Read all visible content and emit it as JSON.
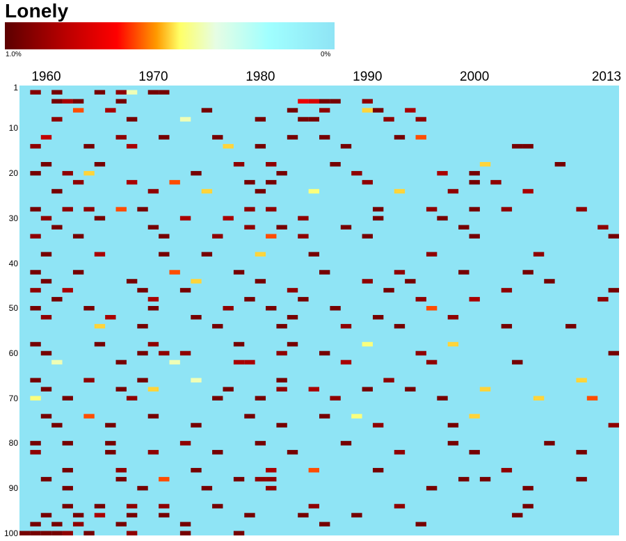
{
  "header": {
    "title": "Lonely"
  },
  "legend": {
    "max_label": "1.0%",
    "min_label": "0%",
    "stops": [
      "#5c0000",
      "#b80000",
      "#ff0000",
      "#ff9a00",
      "#ffff66",
      "#e6fde4",
      "#a0ffff",
      "#8fe4f5"
    ]
  },
  "axes": {
    "x_labels": [
      {
        "text": "1960",
        "year": 1960
      },
      {
        "text": "1970",
        "year": 1970
      },
      {
        "text": "1980",
        "year": 1980
      },
      {
        "text": "1990",
        "year": 1990
      },
      {
        "text": "2000",
        "year": 2000
      },
      {
        "text": "2013",
        "year": 2013
      }
    ],
    "y_labels": [
      {
        "text": "1",
        "rank": 1
      },
      {
        "text": "10",
        "rank": 10
      },
      {
        "text": "20",
        "rank": 20
      },
      {
        "text": "30",
        "rank": 30
      },
      {
        "text": "40",
        "rank": 40
      },
      {
        "text": "50",
        "rank": 50
      },
      {
        "text": "60",
        "rank": 60
      },
      {
        "text": "70",
        "rank": 70
      },
      {
        "text": "80",
        "rank": 80
      },
      {
        "text": "90",
        "rank": 90
      },
      {
        "text": "100",
        "rank": 100
      }
    ]
  },
  "chart_data": {
    "type": "heatmap",
    "title": "Lonely",
    "x_range": [
      1958,
      2013
    ],
    "y_range": [
      1,
      100
    ],
    "value_range": [
      0,
      1.0
    ],
    "value_unit": "%",
    "background_value": 0,
    "colors": {
      "background": "#8fe4f5"
    },
    "cells": [
      [
        1959,
        2,
        0.92
      ],
      [
        1961,
        2,
        0.95
      ],
      [
        1965,
        2,
        0.95
      ],
      [
        1967,
        2,
        0.9
      ],
      [
        1968,
        2,
        0.4
      ],
      [
        1970,
        2,
        0.95
      ],
      [
        1971,
        2,
        0.95
      ],
      [
        1961,
        4,
        0.95
      ],
      [
        1962,
        4,
        0.85
      ],
      [
        1963,
        4,
        0.95
      ],
      [
        1967,
        4,
        0.95
      ],
      [
        1984,
        4,
        0.7
      ],
      [
        1985,
        4,
        0.75
      ],
      [
        1986,
        4,
        0.95
      ],
      [
        1987,
        4,
        0.95
      ],
      [
        1990,
        4,
        0.9
      ],
      [
        1963,
        6,
        0.6
      ],
      [
        1966,
        6,
        0.85
      ],
      [
        1975,
        6,
        0.95
      ],
      [
        1983,
        6,
        0.95
      ],
      [
        1986,
        6,
        0.9
      ],
      [
        1990,
        6,
        0.5
      ],
      [
        1991,
        6,
        0.95
      ],
      [
        1994,
        6,
        0.85
      ],
      [
        1961,
        8,
        0.9
      ],
      [
        1968,
        8,
        0.95
      ],
      [
        1973,
        8,
        0.4
      ],
      [
        1980,
        8,
        0.95
      ],
      [
        1984,
        8,
        0.95
      ],
      [
        1985,
        8,
        0.95
      ],
      [
        1992,
        8,
        0.9
      ],
      [
        1995,
        8,
        0.9
      ],
      [
        1960,
        12,
        0.8
      ],
      [
        1967,
        12,
        0.9
      ],
      [
        1971,
        12,
        0.95
      ],
      [
        1976,
        12,
        0.95
      ],
      [
        1983,
        12,
        0.95
      ],
      [
        1986,
        12,
        0.95
      ],
      [
        1993,
        12,
        0.95
      ],
      [
        1995,
        12,
        0.6
      ],
      [
        1959,
        14,
        0.9
      ],
      [
        1964,
        14,
        0.95
      ],
      [
        1968,
        14,
        0.85
      ],
      [
        1977,
        14,
        0.5
      ],
      [
        1980,
        14,
        0.95
      ],
      [
        1988,
        14,
        0.95
      ],
      [
        2004,
        14,
        0.95
      ],
      [
        2005,
        14,
        0.95
      ],
      [
        1960,
        18,
        0.95
      ],
      [
        1965,
        18,
        0.95
      ],
      [
        1978,
        18,
        0.9
      ],
      [
        1981,
        18,
        0.9
      ],
      [
        1987,
        18,
        0.95
      ],
      [
        2001,
        18,
        0.5
      ],
      [
        2008,
        18,
        0.95
      ],
      [
        1959,
        20,
        0.95
      ],
      [
        1962,
        20,
        0.9
      ],
      [
        1964,
        20,
        0.5
      ],
      [
        1974,
        20,
        0.95
      ],
      [
        1982,
        20,
        0.95
      ],
      [
        1989,
        20,
        0.9
      ],
      [
        1997,
        20,
        0.85
      ],
      [
        2000,
        20,
        0.95
      ],
      [
        1963,
        22,
        0.9
      ],
      [
        1968,
        22,
        0.85
      ],
      [
        1972,
        22,
        0.6
      ],
      [
        1979,
        22,
        0.95
      ],
      [
        1981,
        22,
        0.95
      ],
      [
        1990,
        22,
        0.9
      ],
      [
        2000,
        22,
        0.95
      ],
      [
        2002,
        22,
        0.9
      ],
      [
        1961,
        24,
        0.95
      ],
      [
        1970,
        24,
        0.9
      ],
      [
        1975,
        24,
        0.5
      ],
      [
        1980,
        24,
        0.95
      ],
      [
        1985,
        24,
        0.45
      ],
      [
        1993,
        24,
        0.5
      ],
      [
        1998,
        24,
        0.9
      ],
      [
        2005,
        24,
        0.85
      ],
      [
        1959,
        28,
        0.95
      ],
      [
        1962,
        28,
        0.9
      ],
      [
        1964,
        28,
        0.9
      ],
      [
        1967,
        28,
        0.6
      ],
      [
        1969,
        28,
        0.95
      ],
      [
        1979,
        28,
        0.9
      ],
      [
        1981,
        28,
        0.9
      ],
      [
        1991,
        28,
        0.95
      ],
      [
        1996,
        28,
        0.9
      ],
      [
        2000,
        28,
        0.95
      ],
      [
        2003,
        28,
        0.9
      ],
      [
        2010,
        28,
        0.9
      ],
      [
        1960,
        30,
        0.9
      ],
      [
        1965,
        30,
        0.95
      ],
      [
        1973,
        30,
        0.85
      ],
      [
        1977,
        30,
        0.85
      ],
      [
        1984,
        30,
        0.9
      ],
      [
        1991,
        30,
        0.95
      ],
      [
        1997,
        30,
        0.95
      ],
      [
        1961,
        32,
        0.95
      ],
      [
        1970,
        32,
        0.95
      ],
      [
        1979,
        32,
        0.9
      ],
      [
        1982,
        32,
        0.95
      ],
      [
        1988,
        32,
        0.95
      ],
      [
        1999,
        32,
        0.95
      ],
      [
        2012,
        32,
        0.9
      ],
      [
        1959,
        34,
        0.9
      ],
      [
        1963,
        34,
        0.95
      ],
      [
        1971,
        34,
        0.95
      ],
      [
        1976,
        34,
        0.9
      ],
      [
        1981,
        34,
        0.6
      ],
      [
        1984,
        34,
        0.9
      ],
      [
        1990,
        34,
        0.95
      ],
      [
        2000,
        34,
        0.95
      ],
      [
        2013,
        34,
        0.95
      ],
      [
        1960,
        38,
        0.95
      ],
      [
        1965,
        38,
        0.85
      ],
      [
        1971,
        38,
        0.95
      ],
      [
        1975,
        38,
        0.95
      ],
      [
        1980,
        38,
        0.5
      ],
      [
        1985,
        38,
        0.95
      ],
      [
        1996,
        38,
        0.9
      ],
      [
        2006,
        38,
        0.9
      ],
      [
        1959,
        42,
        0.95
      ],
      [
        1963,
        42,
        0.95
      ],
      [
        1972,
        42,
        0.6
      ],
      [
        1978,
        42,
        0.95
      ],
      [
        1986,
        42,
        0.95
      ],
      [
        1993,
        42,
        0.9
      ],
      [
        1999,
        42,
        0.95
      ],
      [
        2005,
        42,
        0.95
      ],
      [
        1960,
        44,
        0.95
      ],
      [
        1968,
        44,
        0.95
      ],
      [
        1974,
        44,
        0.5
      ],
      [
        1980,
        44,
        0.95
      ],
      [
        1990,
        44,
        0.9
      ],
      [
        1994,
        44,
        0.95
      ],
      [
        2007,
        44,
        0.95
      ],
      [
        1959,
        46,
        0.9
      ],
      [
        1962,
        46,
        0.85
      ],
      [
        1969,
        46,
        0.95
      ],
      [
        1973,
        46,
        0.95
      ],
      [
        1983,
        46,
        0.9
      ],
      [
        1992,
        46,
        0.95
      ],
      [
        2003,
        46,
        0.9
      ],
      [
        2013,
        46,
        0.95
      ],
      [
        1961,
        48,
        0.95
      ],
      [
        1970,
        48,
        0.85
      ],
      [
        1979,
        48,
        0.95
      ],
      [
        1984,
        48,
        0.95
      ],
      [
        1995,
        48,
        0.9
      ],
      [
        2000,
        48,
        0.85
      ],
      [
        2012,
        48,
        0.9
      ],
      [
        1959,
        50,
        0.95
      ],
      [
        1964,
        50,
        0.95
      ],
      [
        1970,
        50,
        0.95
      ],
      [
        1977,
        50,
        0.9
      ],
      [
        1981,
        50,
        0.95
      ],
      [
        1987,
        50,
        0.95
      ],
      [
        1996,
        50,
        0.6
      ],
      [
        1960,
        52,
        0.9
      ],
      [
        1966,
        52,
        0.85
      ],
      [
        1974,
        52,
        0.95
      ],
      [
        1983,
        52,
        0.95
      ],
      [
        1991,
        52,
        0.95
      ],
      [
        1998,
        52,
        0.9
      ],
      [
        1965,
        54,
        0.5
      ],
      [
        1969,
        54,
        0.95
      ],
      [
        1976,
        54,
        0.95
      ],
      [
        1982,
        54,
        0.95
      ],
      [
        1988,
        54,
        0.9
      ],
      [
        1993,
        54,
        0.95
      ],
      [
        2003,
        54,
        0.95
      ],
      [
        2009,
        54,
        0.95
      ],
      [
        1959,
        58,
        0.95
      ],
      [
        1965,
        58,
        0.95
      ],
      [
        1970,
        58,
        0.9
      ],
      [
        1978,
        58,
        0.95
      ],
      [
        1983,
        58,
        0.95
      ],
      [
        1990,
        58,
        0.45
      ],
      [
        1998,
        58,
        0.5
      ],
      [
        1960,
        60,
        0.95
      ],
      [
        1969,
        60,
        0.95
      ],
      [
        1971,
        60,
        0.9
      ],
      [
        1973,
        60,
        0.9
      ],
      [
        1982,
        60,
        0.9
      ],
      [
        1986,
        60,
        0.95
      ],
      [
        1995,
        60,
        0.9
      ],
      [
        2013,
        60,
        0.95
      ],
      [
        1961,
        62,
        0.4
      ],
      [
        1967,
        62,
        0.95
      ],
      [
        1972,
        62,
        0.4
      ],
      [
        1978,
        62,
        0.85
      ],
      [
        1979,
        62,
        0.85
      ],
      [
        1988,
        62,
        0.85
      ],
      [
        1996,
        62,
        0.9
      ],
      [
        2004,
        62,
        0.95
      ],
      [
        1959,
        66,
        0.95
      ],
      [
        1964,
        66,
        0.9
      ],
      [
        1969,
        66,
        0.95
      ],
      [
        1974,
        66,
        0.4
      ],
      [
        1982,
        66,
        0.95
      ],
      [
        1992,
        66,
        0.9
      ],
      [
        2010,
        66,
        0.5
      ],
      [
        1960,
        68,
        0.95
      ],
      [
        1967,
        68,
        0.95
      ],
      [
        1970,
        68,
        0.5
      ],
      [
        1977,
        68,
        0.95
      ],
      [
        1982,
        68,
        0.9
      ],
      [
        1985,
        68,
        0.85
      ],
      [
        1990,
        68,
        0.95
      ],
      [
        1994,
        68,
        0.95
      ],
      [
        2001,
        68,
        0.5
      ],
      [
        1959,
        70,
        0.45
      ],
      [
        1962,
        70,
        0.95
      ],
      [
        1968,
        70,
        0.9
      ],
      [
        1976,
        70,
        0.95
      ],
      [
        1980,
        70,
        0.95
      ],
      [
        1987,
        70,
        0.9
      ],
      [
        1997,
        70,
        0.95
      ],
      [
        2006,
        70,
        0.5
      ],
      [
        2011,
        70,
        0.6
      ],
      [
        1960,
        74,
        0.95
      ],
      [
        1964,
        74,
        0.6
      ],
      [
        1970,
        74,
        0.95
      ],
      [
        1979,
        74,
        0.95
      ],
      [
        1986,
        74,
        0.95
      ],
      [
        1989,
        74,
        0.45
      ],
      [
        2000,
        74,
        0.5
      ],
      [
        1961,
        76,
        0.95
      ],
      [
        1966,
        76,
        0.95
      ],
      [
        1974,
        76,
        0.95
      ],
      [
        1982,
        76,
        0.95
      ],
      [
        1991,
        76,
        0.9
      ],
      [
        1998,
        76,
        0.95
      ],
      [
        2013,
        76,
        0.9
      ],
      [
        1959,
        80,
        0.95
      ],
      [
        1962,
        80,
        0.95
      ],
      [
        1966,
        80,
        0.95
      ],
      [
        1973,
        80,
        0.9
      ],
      [
        1980,
        80,
        0.95
      ],
      [
        1988,
        80,
        0.95
      ],
      [
        1998,
        80,
        0.95
      ],
      [
        2007,
        80,
        0.95
      ],
      [
        1959,
        82,
        0.9
      ],
      [
        1966,
        82,
        0.95
      ],
      [
        1970,
        82,
        0.9
      ],
      [
        1976,
        82,
        0.95
      ],
      [
        1983,
        82,
        0.95
      ],
      [
        1993,
        82,
        0.9
      ],
      [
        2000,
        82,
        0.95
      ],
      [
        2010,
        82,
        0.95
      ],
      [
        1962,
        86,
        0.95
      ],
      [
        1967,
        86,
        0.9
      ],
      [
        1974,
        86,
        0.95
      ],
      [
        1981,
        86,
        0.85
      ],
      [
        1985,
        86,
        0.6
      ],
      [
        1991,
        86,
        0.95
      ],
      [
        2003,
        86,
        0.9
      ],
      [
        1960,
        88,
        0.95
      ],
      [
        1967,
        88,
        0.95
      ],
      [
        1971,
        88,
        0.6
      ],
      [
        1978,
        88,
        0.95
      ],
      [
        1980,
        88,
        0.9
      ],
      [
        1981,
        88,
        0.9
      ],
      [
        1999,
        88,
        0.95
      ],
      [
        2001,
        88,
        0.95
      ],
      [
        2010,
        88,
        0.95
      ],
      [
        1962,
        90,
        0.95
      ],
      [
        1969,
        90,
        0.95
      ],
      [
        1975,
        90,
        0.95
      ],
      [
        1981,
        90,
        0.9
      ],
      [
        1996,
        90,
        0.95
      ],
      [
        2005,
        90,
        0.95
      ],
      [
        1962,
        94,
        0.95
      ],
      [
        1965,
        94,
        0.95
      ],
      [
        1968,
        94,
        0.9
      ],
      [
        1971,
        94,
        0.9
      ],
      [
        1976,
        94,
        0.95
      ],
      [
        1985,
        94,
        0.9
      ],
      [
        1993,
        94,
        0.9
      ],
      [
        2005,
        94,
        0.95
      ],
      [
        1960,
        96,
        0.95
      ],
      [
        1963,
        96,
        0.95
      ],
      [
        1965,
        96,
        0.85
      ],
      [
        1968,
        96,
        0.95
      ],
      [
        1971,
        96,
        0.95
      ],
      [
        1979,
        96,
        0.95
      ],
      [
        1984,
        96,
        0.95
      ],
      [
        1989,
        96,
        0.95
      ],
      [
        2004,
        96,
        0.95
      ],
      [
        1959,
        98,
        0.95
      ],
      [
        1961,
        98,
        0.95
      ],
      [
        1963,
        98,
        0.9
      ],
      [
        1967,
        98,
        0.95
      ],
      [
        1973,
        98,
        0.95
      ],
      [
        1986,
        98,
        0.95
      ],
      [
        1995,
        98,
        0.95
      ],
      [
        1958,
        100,
        0.95
      ],
      [
        1959,
        100,
        0.95
      ],
      [
        1960,
        100,
        0.95
      ],
      [
        1961,
        100,
        0.95
      ],
      [
        1962,
        100,
        0.9
      ],
      [
        1964,
        100,
        0.95
      ],
      [
        1968,
        100,
        0.9
      ],
      [
        1973,
        100,
        0.95
      ],
      [
        1978,
        100,
        0.95
      ]
    ]
  }
}
